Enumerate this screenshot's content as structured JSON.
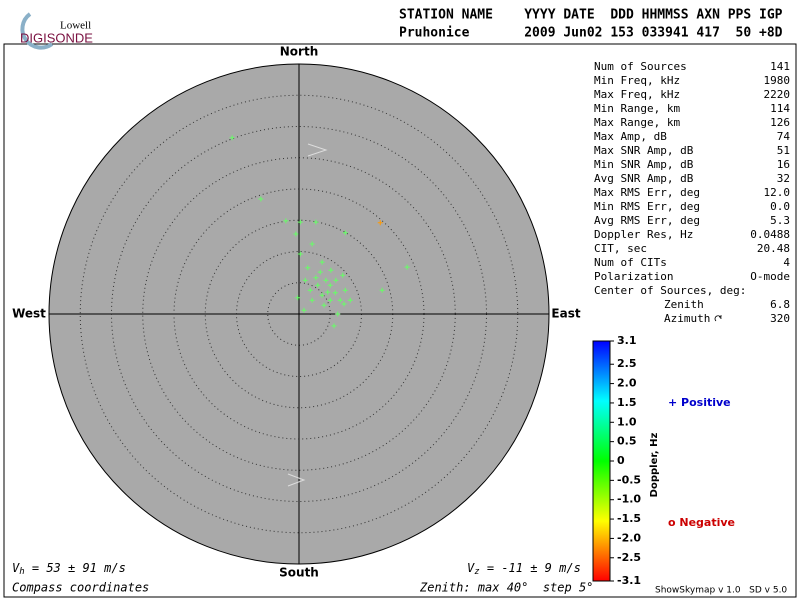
{
  "header": {
    "logo_top": "Lowell",
    "logo_bottom": "DIGISONDE",
    "columns": "STATION NAME    YYYY DATE  DDD HHMMSS AXN PPS IGP",
    "values": "Pruhonice       2009 Jun02 153 033941 417  50 +8D"
  },
  "stats": [
    {
      "label": "Num of Sources",
      "value": "141"
    },
    {
      "label": "Min Freq, kHz",
      "value": "1980"
    },
    {
      "label": "Max Freq, kHz",
      "value": "2220"
    },
    {
      "label": "Min Range, km",
      "value": "114"
    },
    {
      "label": "Max Range, km",
      "value": "126"
    },
    {
      "label": "Max Amp, dB",
      "value": "74"
    },
    {
      "label": "Max SNR Amp, dB",
      "value": "51"
    },
    {
      "label": "Min SNR Amp, dB",
      "value": "16"
    },
    {
      "label": "Avg SNR Amp, dB",
      "value": "32"
    },
    {
      "label": "Max RMS Err, deg",
      "value": "12.0"
    },
    {
      "label": "Min RMS Err, deg",
      "value": "0.0"
    },
    {
      "label": "Avg RMS Err, deg",
      "value": "5.3"
    },
    {
      "label": "Doppler Res, Hz",
      "value": "0.0488"
    },
    {
      "label": "CIT, sec",
      "value": "20.48"
    },
    {
      "label": "Num of CITs",
      "value": "4"
    },
    {
      "label": "Polarization",
      "value": "O-mode"
    }
  ],
  "center": {
    "title": "Center of Sources, deg:",
    "rows": [
      {
        "label": "Zenith",
        "value": "6.8"
      },
      {
        "label": "Azimuth",
        "value": "320"
      }
    ]
  },
  "chart_data": {
    "type": "scatter",
    "directions": {
      "north": "North",
      "south": "South",
      "west": "West",
      "east": "East"
    },
    "xlim": [
      -40,
      40
    ],
    "ylim": [
      -40,
      40
    ],
    "rings": [
      5,
      10,
      15,
      20,
      25,
      30,
      35
    ],
    "series": [
      {
        "color": "#66ff66",
        "x": [
          -10.7,
          -6.1,
          -2.1,
          0.2,
          2.7,
          -0.5,
          7.4,
          17.3,
          13.3,
          2.1,
          0.2,
          1.4,
          3.4,
          4.3,
          5.0,
          3.0,
          5.8,
          3.7,
          6.6,
          2.1,
          -0.2,
          0.8,
          6.2,
          5.6,
          7.2,
          2.7,
          4.6,
          4.0,
          5.1,
          7.0,
          8.2,
          1.8,
          5.0,
          5.9,
          3.7,
          1.0,
          7.4
        ],
        "y": [
          28.2,
          18.4,
          14.9,
          14.7,
          14.7,
          12.8,
          13.0,
          7.5,
          3.8,
          11.2,
          9.6,
          7.4,
          6.7,
          5.4,
          4.6,
          4.6,
          3.4,
          3.0,
          2.2,
          2.2,
          2.6,
          0.6,
          0.0,
          -1.9,
          1.6,
          5.8,
          3.5,
          1.4,
          7.0,
          6.2,
          2.2,
          3.8,
          2.2,
          5.4,
          8.3,
          5.4,
          3.8
        ]
      },
      {
        "color": "#ff9900",
        "x": [
          13.0
        ],
        "y": [
          14.6
        ]
      }
    ],
    "colorbar": {
      "label": "Doppler, Hz",
      "lim": [
        -3.1,
        3.1
      ],
      "ticks": [
        3.1,
        2.5,
        {
          "value": 2,
          "label": "2.0"
        },
        1.5,
        {
          "value": 1,
          "label": "1.0"
        },
        0.5,
        0,
        -0.5,
        {
          "value": -1,
          "label": "-1.0"
        },
        -1.5,
        {
          "value": -2,
          "label": "-2.0"
        },
        -2.5,
        -3.1
      ]
    },
    "legend": {
      "positive": "+ Positive",
      "negative": "o Negative"
    },
    "footer": {
      "vh_symbol": "V",
      "vh_sub": "h",
      "vh_text": " = 53 ± 91 m/s",
      "vz_symbol": "V",
      "vz_sub": "z",
      "vz_text": " = -11 ± 9 m/s",
      "coords": "Compass coordinates",
      "zenith": "Zenith: max 40°  step 5°",
      "version": "ShowSkymap v 1.0   SD v 5.0"
    }
  }
}
